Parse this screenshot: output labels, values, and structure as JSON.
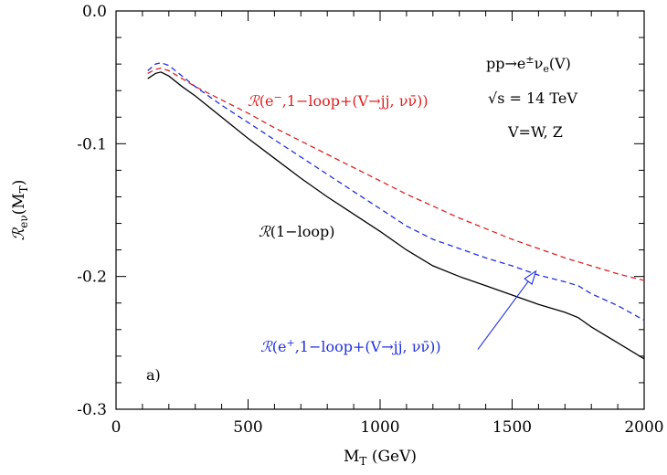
{
  "chart_data": {
    "type": "line",
    "xlabel": "M_T (GeV)",
    "ylabel": "R_eν(M_T)",
    "xlim": [
      0,
      2000
    ],
    "ylim": [
      -0.3,
      0.0
    ],
    "x_ticks": [
      "0",
      "500",
      "1000",
      "1500",
      "2000"
    ],
    "y_ticks": [
      "0.0",
      "-0.1",
      "-0.2",
      "-0.3"
    ],
    "x_tick_values": [
      0,
      500,
      1000,
      1500,
      2000
    ],
    "y_tick_values": [
      0.0,
      -0.1,
      -0.2,
      -0.3
    ],
    "grid": false,
    "series": [
      {
        "label": "ℛ(1−loop)",
        "color": "#000000",
        "dash": "solid",
        "x": [
          120,
          150,
          170,
          200,
          250,
          300,
          400,
          500,
          600,
          700,
          800,
          900,
          1000,
          1100,
          1200,
          1300,
          1400,
          1500,
          1600,
          1700,
          1750,
          1800,
          1900,
          2000
        ],
        "y": [
          -0.051,
          -0.047,
          -0.046,
          -0.049,
          -0.057,
          -0.064,
          -0.08,
          -0.096,
          -0.111,
          -0.126,
          -0.14,
          -0.153,
          -0.166,
          -0.18,
          -0.192,
          -0.2,
          -0.207,
          -0.214,
          -0.221,
          -0.227,
          -0.231,
          -0.238,
          -0.25,
          -0.262
        ]
      },
      {
        "label": "ℛ(e⁻,1−loop+(V→jj, νν̄))",
        "color": "#e02020",
        "dash": "dashed",
        "x": [
          120,
          150,
          170,
          200,
          250,
          300,
          400,
          500,
          600,
          700,
          800,
          900,
          1000,
          1100,
          1200,
          1300,
          1400,
          1500,
          1600,
          1700,
          1800,
          1900,
          2000
        ],
        "y": [
          -0.047,
          -0.044,
          -0.043,
          -0.045,
          -0.051,
          -0.057,
          -0.067,
          -0.077,
          -0.088,
          -0.098,
          -0.108,
          -0.118,
          -0.128,
          -0.138,
          -0.147,
          -0.156,
          -0.164,
          -0.172,
          -0.179,
          -0.186,
          -0.192,
          -0.198,
          -0.203
        ]
      },
      {
        "label": "ℛ(e⁺,1−loop+(V→jj, νν̄))",
        "color": "#2030e0",
        "dash": "dashed",
        "x": [
          120,
          150,
          170,
          200,
          250,
          300,
          400,
          500,
          600,
          700,
          800,
          900,
          1000,
          1100,
          1200,
          1300,
          1400,
          1500,
          1600,
          1700,
          1750,
          1800,
          1900,
          2000
        ],
        "y": [
          -0.045,
          -0.04,
          -0.039,
          -0.041,
          -0.049,
          -0.057,
          -0.071,
          -0.084,
          -0.097,
          -0.11,
          -0.123,
          -0.136,
          -0.149,
          -0.162,
          -0.172,
          -0.179,
          -0.186,
          -0.192,
          -0.199,
          -0.204,
          -0.207,
          -0.213,
          -0.222,
          -0.233
        ]
      }
    ],
    "annotations": [
      {
        "id": "process",
        "text": "pp→e±νe(V)"
      },
      {
        "id": "energy",
        "text": "√s = 14 TeV"
      },
      {
        "id": "boson",
        "text": "V=W, Z"
      },
      {
        "id": "panel",
        "text": "a)"
      }
    ],
    "arrow": {
      "from": [
        1370,
        -0.255
      ],
      "to": [
        1590,
        -0.196
      ],
      "color": "#2030e0"
    }
  }
}
